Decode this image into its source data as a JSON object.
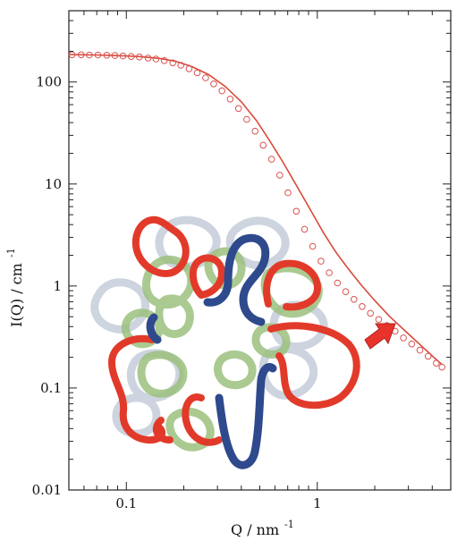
{
  "chart_data": {
    "type": "scatter",
    "title": "",
    "xlabel": "Q / nm",
    "xlabel_sup": "-1",
    "ylabel": "I(Q) / cm",
    "ylabel_sup": "-1",
    "xscale": "log",
    "yscale": "log",
    "xlim": [
      0.05,
      5
    ],
    "ylim": [
      0.01,
      500
    ],
    "grid": false,
    "x_ticks": [
      {
        "value": 0.1,
        "label": "0.1"
      },
      {
        "value": 1,
        "label": "1"
      }
    ],
    "y_ticks": [
      {
        "value": 0.01,
        "label": "0.01"
      },
      {
        "value": 0.1,
        "label": "0.1"
      },
      {
        "value": 1,
        "label": "1"
      },
      {
        "value": 10,
        "label": "10"
      },
      {
        "value": 100,
        "label": "100"
      }
    ],
    "series": [
      {
        "kind": "markers",
        "color": "#d9534f",
        "x": [
          0.052,
          0.058,
          0.064,
          0.071,
          0.079,
          0.087,
          0.096,
          0.106,
          0.117,
          0.13,
          0.143,
          0.158,
          0.175,
          0.193,
          0.213,
          0.235,
          0.26,
          0.287,
          0.317,
          0.35,
          0.387,
          0.427,
          0.472,
          0.521,
          0.576,
          0.636,
          0.702,
          0.776,
          0.857,
          0.946,
          1.045,
          1.155,
          1.275,
          1.408,
          1.556,
          1.718,
          1.898,
          2.096,
          2.315,
          2.557,
          2.825,
          3.12,
          3.446,
          3.806,
          4.2,
          4.5
        ],
        "y": [
          185,
          185,
          184,
          184,
          183,
          182,
          180,
          178,
          176,
          172,
          168,
          162,
          154,
          146,
          135,
          123,
          110,
          96,
          82,
          68,
          55,
          43,
          33,
          24,
          17.5,
          12.2,
          8.2,
          5.4,
          3.6,
          2.45,
          1.75,
          1.35,
          1.07,
          0.88,
          0.74,
          0.63,
          0.54,
          0.47,
          0.41,
          0.36,
          0.31,
          0.27,
          0.235,
          0.205,
          0.175,
          0.16
        ]
      },
      {
        "kind": "line",
        "color": "#d94a3a",
        "x": [
          0.05,
          0.06,
          0.07,
          0.08,
          0.1,
          0.12,
          0.15,
          0.18,
          0.22,
          0.27,
          0.33,
          0.4,
          0.48,
          0.56,
          0.66,
          0.78,
          0.92,
          1.08,
          1.25,
          1.45,
          1.7,
          2.0,
          2.4,
          2.9,
          3.5,
          4.2,
          4.5
        ],
        "y": [
          186,
          185,
          184,
          183,
          180,
          177,
          170,
          160,
          142,
          118,
          90,
          64,
          42,
          27,
          16.5,
          9.6,
          5.6,
          3.3,
          2.15,
          1.48,
          1.02,
          0.72,
          0.5,
          0.36,
          0.26,
          0.19,
          0.17
        ]
      }
    ]
  },
  "annotation": {
    "arrow_color": "#e8332a",
    "illustration": "flower-micelle",
    "illustration_colors": {
      "shell": "#e23a2a",
      "backbone": "#2e4a8c",
      "core_green": "#9cc17e",
      "halo": "#c8d0dc"
    }
  }
}
